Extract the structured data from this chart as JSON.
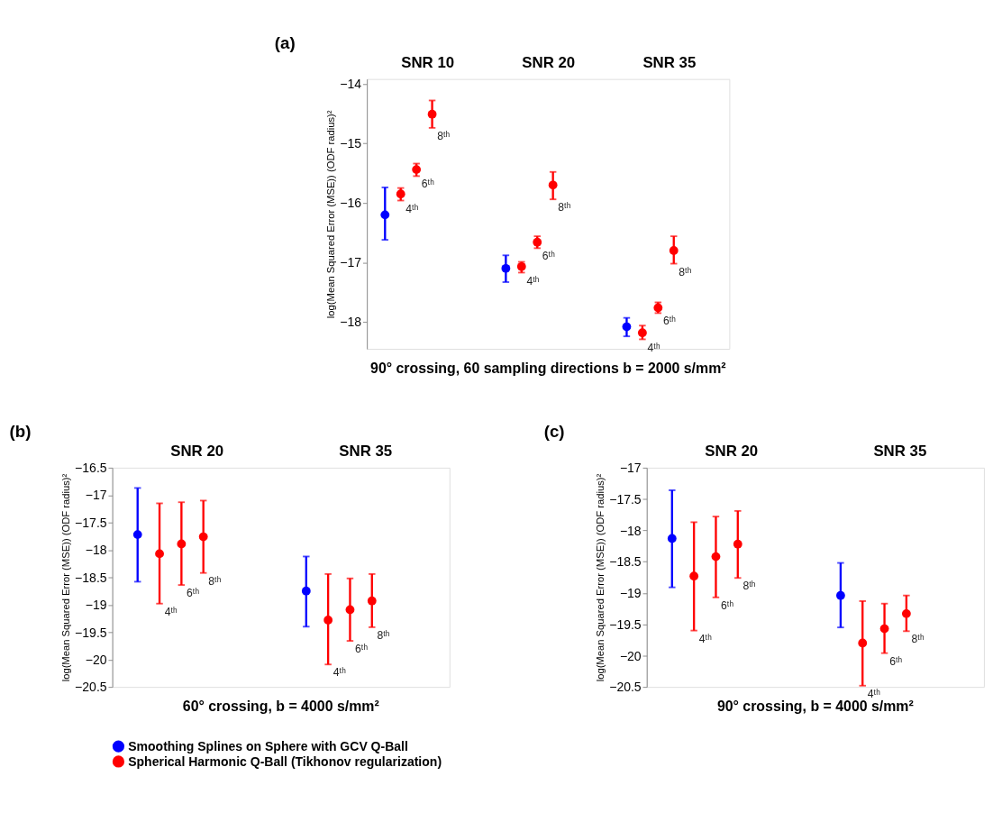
{
  "chart_data": [
    {
      "type": "scatter",
      "title": "(a)",
      "xlabel": "90° crossing, 60 sampling directions b = 2000 s/mm²",
      "ylabel": "log(Mean Squared Error (MSE)) (ODF radius)²",
      "categories": [
        "SNR 10",
        "SNR 20",
        "SNR 35"
      ],
      "ylim": [
        -18.45,
        -13.92
      ],
      "yticks": [
        -14,
        -15,
        -16,
        -17,
        -18
      ],
      "grid": false,
      "marker": "circle",
      "legend": "bottom",
      "series": [
        {
          "name": "Smoothing Splines on Sphere with GCV Q-Ball",
          "color": "#0000ff",
          "values": [
            -16.2,
            -17.1,
            -18.08
          ],
          "errors": [
            [
              -16.62,
              -15.74
            ],
            [
              -17.33,
              -16.88
            ],
            [
              -18.24,
              -17.93
            ]
          ]
        },
        {
          "name": "Spherical Harmonic Q-Ball (Tikhonov regularization)",
          "color": "#ff0000",
          "values": [
            -15.85,
            -17.07,
            -18.18
          ],
          "errors": [
            [
              -15.96,
              -15.75
            ],
            [
              -17.17,
              -16.99
            ],
            [
              -18.29,
              -18.06
            ]
          ]
        },
        {
          "color": "#ff0000",
          "values": [
            -15.44,
            -16.66,
            -17.76
          ],
          "errors": [
            [
              -15.55,
              -15.34
            ],
            [
              -16.76,
              -16.56
            ],
            [
              -17.85,
              -17.67
            ]
          ]
        },
        {
          "color": "#ff0000",
          "values": [
            -14.51,
            -15.7,
            -16.8
          ],
          "errors": [
            [
              -14.74,
              -14.28
            ],
            [
              -15.94,
              -15.48
            ],
            [
              -17.02,
              -16.56
            ]
          ]
        }
      ],
      "annotations": [
        "4ᵗʰ",
        "6ᵗʰ",
        "8ᵗʰ",
        "4ᵗʰ",
        "6ᵗʰ",
        "8ᵗʰ",
        "4ᵗʰ",
        "6ᵗʰ",
        "8ᵗʰ"
      ]
    },
    {
      "type": "scatter",
      "title": "(b)",
      "xlabel": "60° crossing, b = 4000 s/mm²",
      "ylabel": "log(Mean Squared Error (MSE)) (ODF radius)²",
      "categories": [
        "SNR 20",
        "SNR 35"
      ],
      "ylim": [
        -20.5,
        -16.5
      ],
      "yticks": [
        -16.5,
        -17,
        -17.5,
        -18,
        -18.5,
        -19,
        -19.5,
        -20,
        -20.5
      ],
      "grid": false,
      "marker": "circle",
      "legend": "bottom",
      "series": [
        {
          "name": "Smoothing Splines on Sphere with GCV Q-Ball",
          "color": "#0000ff",
          "values": [
            -17.72,
            -18.75
          ],
          "errors": [
            [
              -18.58,
              -16.87
            ],
            [
              -19.4,
              -18.12
            ]
          ]
        },
        {
          "name": "Spherical Harmonic Q-Ball (Tikhonov regularization)",
          "color": "#ff0000",
          "values": [
            -18.07,
            -19.28
          ],
          "errors": [
            [
              -18.98,
              -17.15
            ],
            [
              -20.09,
              -18.44
            ]
          ]
        },
        {
          "color": "#ff0000",
          "values": [
            -17.89,
            -19.09
          ],
          "errors": [
            [
              -18.64,
              -17.13
            ],
            [
              -19.66,
              -18.52
            ]
          ]
        },
        {
          "color": "#ff0000",
          "values": [
            -17.76,
            -18.93
          ],
          "errors": [
            [
              -18.42,
              -17.1
            ],
            [
              -19.41,
              -18.44
            ]
          ]
        }
      ],
      "annotations": [
        "4ᵗʰ",
        "6ᵗʰ",
        "8ᵗʰ",
        "4ᵗʰ",
        "6ᵗʰ",
        "8ᵗʰ"
      ]
    },
    {
      "type": "scatter",
      "title": "(c)",
      "xlabel": "90° crossing, b = 4000 s/mm²",
      "ylabel": "log(Mean Squared Error (MSE)) (ODF radius)²",
      "categories": [
        "SNR 20",
        "SNR 35"
      ],
      "ylim": [
        -20.5,
        -17
      ],
      "yticks": [
        -17,
        -17.5,
        -18,
        -18.5,
        -19,
        -19.5,
        -20,
        -20.5
      ],
      "grid": false,
      "marker": "circle",
      "legend": "bottom",
      "series": [
        {
          "name": "Smoothing Splines on Sphere with GCV Q-Ball",
          "color": "#0000ff",
          "values": [
            -18.13,
            -19.04
          ],
          "errors": [
            [
              -18.91,
              -17.36
            ],
            [
              -19.55,
              -18.52
            ]
          ]
        },
        {
          "name": "Spherical Harmonic Q-Ball (Tikhonov regularization)",
          "color": "#ff0000",
          "values": [
            -18.73,
            -19.8
          ],
          "errors": [
            [
              -19.6,
              -17.87
            ],
            [
              -20.48,
              -19.13
            ]
          ]
        },
        {
          "color": "#ff0000",
          "values": [
            -18.42,
            -19.57
          ],
          "errors": [
            [
              -19.07,
              -17.78
            ],
            [
              -19.96,
              -19.17
            ]
          ]
        },
        {
          "color": "#ff0000",
          "values": [
            -18.22,
            -19.33
          ],
          "errors": [
            [
              -18.76,
              -17.69
            ],
            [
              -19.61,
              -19.04
            ]
          ]
        }
      ],
      "annotations": [
        "4ᵗʰ",
        "6ᵗʰ",
        "8ᵗʰ",
        "4ᵗʰ",
        "6ᵗʰ",
        "8ᵗʰ"
      ]
    }
  ]
}
